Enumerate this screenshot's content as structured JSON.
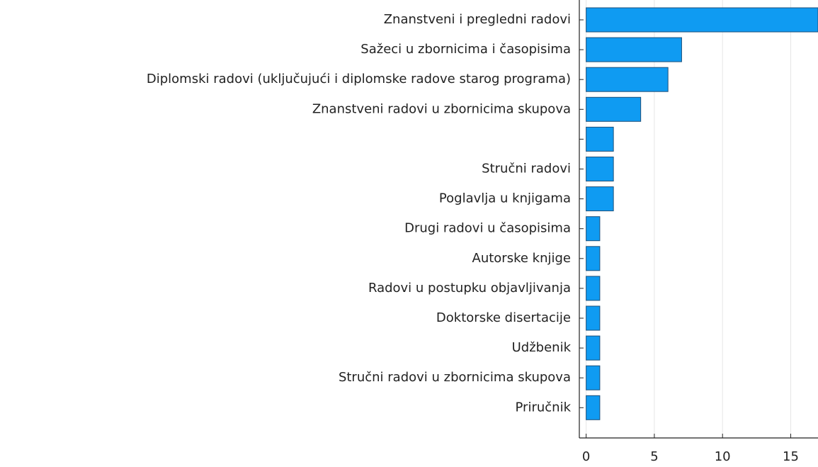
{
  "chart_data": {
    "type": "bar",
    "orientation": "horizontal",
    "categories": [
      "Znanstveni i pregledni radovi",
      "Sažeci u zbornicima i časopisima",
      "Diplomski radovi (uključujući i diplomske radove starog programa)",
      "Znanstveni radovi u zbornicima skupova",
      null,
      "Stručni radovi",
      "Poglavlja u knjigama",
      "Drugi radovi u časopisima",
      "Autorske knjige",
      "Radovi u postupku objavljivanja",
      "Doktorske disertacije",
      "Udžbenik",
      "Stručni radovi u zbornicima skupova",
      "Priručnik"
    ],
    "values": [
      17,
      7,
      6,
      4,
      2,
      2,
      2,
      1,
      1,
      1,
      1,
      1,
      1,
      1
    ],
    "color": "#0f9bf2",
    "xlim": [
      -0.5,
      17
    ],
    "xticks": [
      0,
      5,
      10,
      15
    ],
    "grid": true
  }
}
